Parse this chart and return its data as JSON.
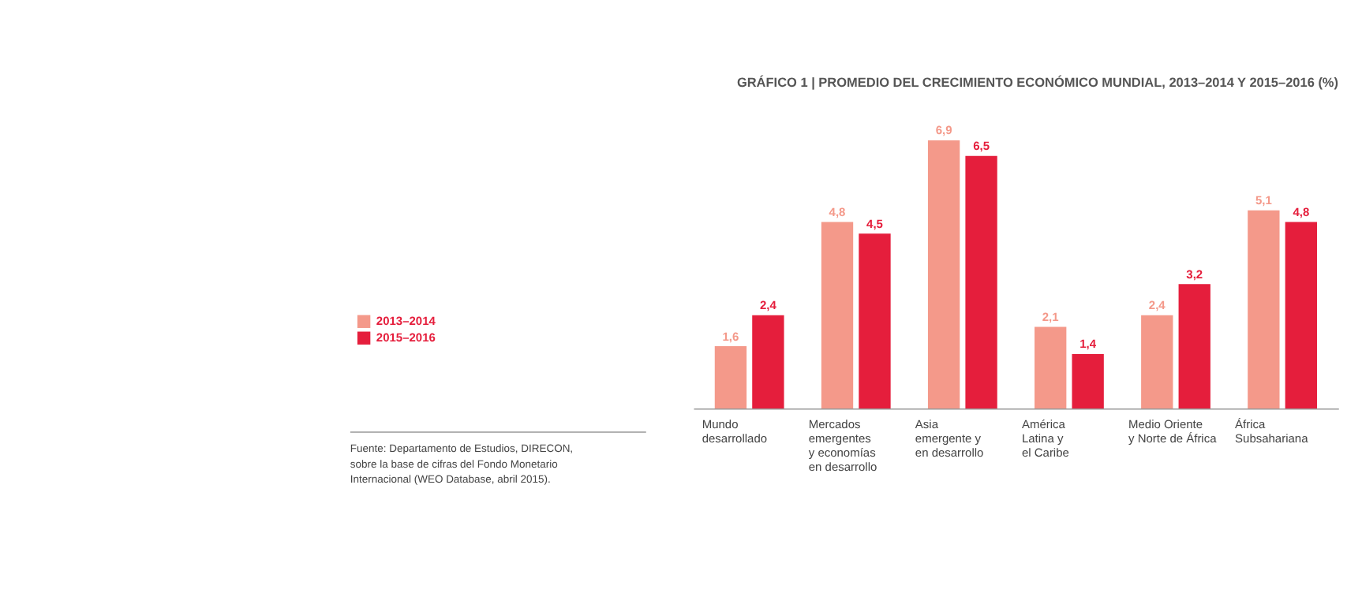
{
  "chart_data": {
    "type": "bar",
    "title": "GRÁFICO 1 | PROMEDIO DEL CRECIMIENTO ECONÓMICO MUNDIAL, 2013–2014 Y 2015–2016 (%)",
    "categories": [
      "Mundo\ndesarrollado",
      "Mercados\nemergentes\ny economías\nen desarrollo",
      "Asia\nemergente y\nen desarrollo",
      "América\nLatina y\nel Caribe",
      "Medio Oriente\ny Norte de África",
      "África\nSubsahariana"
    ],
    "series": [
      {
        "name": "2013–2014",
        "color": "#f4998a",
        "values": [
          1.6,
          4.8,
          6.9,
          2.1,
          2.4,
          5.1
        ],
        "value_labels": [
          "1,6",
          "4,8",
          "6,9",
          "2,1",
          "2,4",
          "5,1"
        ]
      },
      {
        "name": "2015–2016",
        "color": "#e51e3c",
        "values": [
          2.4,
          4.5,
          6.5,
          1.4,
          3.2,
          4.8
        ],
        "value_labels": [
          "2,4",
          "4,5",
          "6,5",
          "1,4",
          "3,2",
          "4,8"
        ]
      }
    ],
    "legend": "left",
    "grid": false,
    "annotations": [
      "Fuente: Departamento de Estudios, DIRECON,\nsobre la base de cifras del Fondo Monetario\nInternacional (WEO Database, abril 2015)."
    ]
  }
}
